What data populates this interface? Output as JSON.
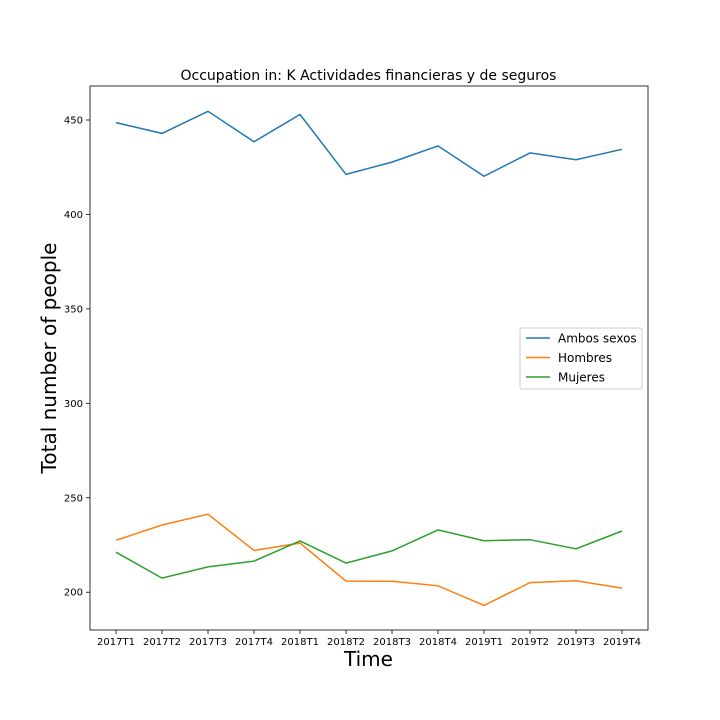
{
  "chart_data": {
    "type": "line",
    "title": "Occupation in: K Actividades financieras y de seguros",
    "xlabel": "Time",
    "ylabel": "Total number of people",
    "categories": [
      "2017T1",
      "2017T2",
      "2017T3",
      "2017T4",
      "2018T1",
      "2018T2",
      "2018T3",
      "2018T4",
      "2019T1",
      "2019T2",
      "2019T3",
      "2019T4"
    ],
    "ylim": [
      180,
      468
    ],
    "yticks": [
      200,
      250,
      300,
      350,
      400,
      450
    ],
    "grid": false,
    "legend_position": "center-right",
    "series": [
      {
        "name": "Ambos sexos",
        "color": "#1f77b4",
        "values": [
          448.6,
          442.9,
          454.6,
          438.5,
          452.9,
          421.2,
          427.7,
          436.3,
          420.2,
          432.6,
          429.0,
          434.5
        ]
      },
      {
        "name": "Hombres",
        "color": "#ff7f0e",
        "values": [
          227.5,
          235.6,
          241.3,
          222.1,
          226.0,
          205.9,
          205.8,
          203.4,
          193.0,
          205.1,
          206.1,
          202.2
        ]
      },
      {
        "name": "Mujeres",
        "color": "#2ca02c",
        "values": [
          221.2,
          207.5,
          213.4,
          216.5,
          227.1,
          215.4,
          221.9,
          233.0,
          227.3,
          227.8,
          223.0,
          232.4
        ]
      }
    ]
  }
}
